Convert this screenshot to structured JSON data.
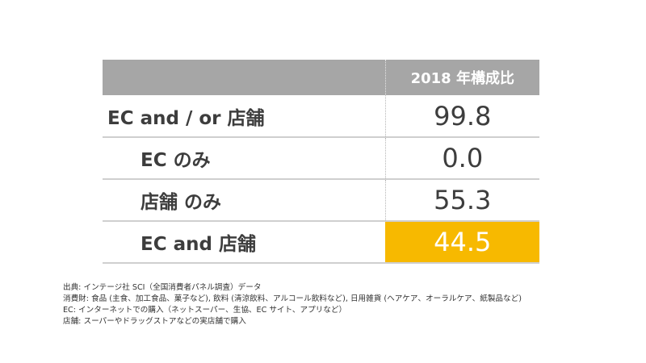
{
  "chart_data": {
    "type": "table",
    "column_header": "2018 年構成比",
    "rows": [
      {
        "label": "EC and / or 店舗",
        "value": "99.8",
        "indent": 0,
        "highlight": false
      },
      {
        "label": "EC のみ",
        "value": "0.0",
        "indent": 1,
        "highlight": false
      },
      {
        "label": "店舗 のみ",
        "value": "55.3",
        "indent": 1,
        "highlight": false
      },
      {
        "label": "EC and 店舗",
        "value": "44.5",
        "indent": 1,
        "highlight": true
      }
    ],
    "highlight_color": "#f7b900"
  },
  "notes": [
    "出典: インテージ社 SCI（全国消費者パネル調査）データ",
    "消費財: 食品 (主食、加工食品、菓子など), 飲料 (清涼飲料、アルコール飲料など), 日用雑貨 (ヘアケア、オーラルケア、紙製品など)",
    "EC: インターネットでの購入（ネットスーパー、生協、EC サイト、アプリなど）",
    "店舗: スーパーやドラッグストアなどの実店舗で購入"
  ]
}
